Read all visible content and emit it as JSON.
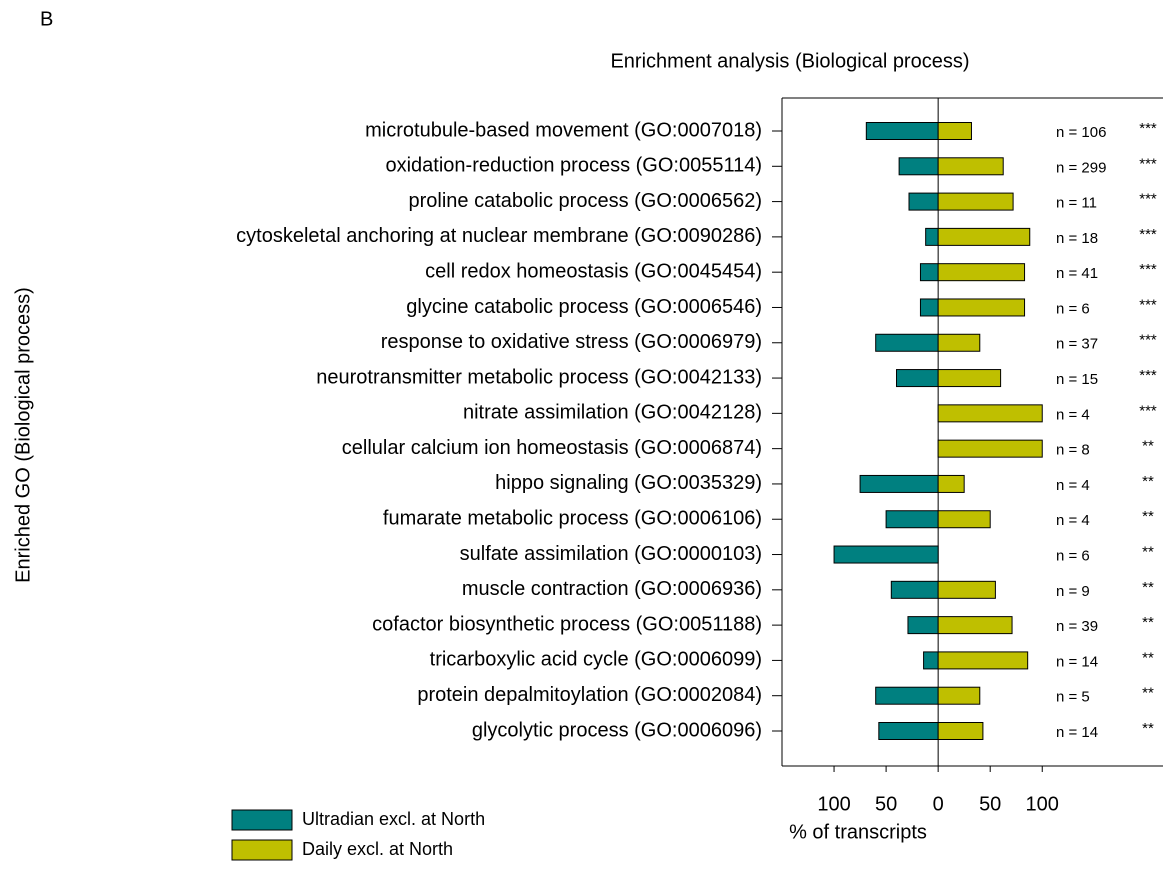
{
  "chart_data": {
    "type": "diverging-bar",
    "panel_label": "B",
    "title": "Enrichment analysis (Biological process)",
    "y_label": "Enriched GO (Biological process)",
    "x_label": "% of transcripts",
    "categories": [
      "microtubule-based movement (GO:0007018)",
      "oxidation-reduction process (GO:0055114)",
      "proline catabolic process (GO:0006562)",
      "cytoskeletal anchoring at nuclear membrane (GO:0090286)",
      "cell redox homeostasis (GO:0045454)",
      "glycine catabolic process (GO:0006546)",
      "response to oxidative stress (GO:0006979)",
      "neurotransmitter metabolic process (GO:0042133)",
      "nitrate assimilation (GO:0042128)",
      "cellular calcium ion homeostasis (GO:0006874)",
      "hippo signaling (GO:0035329)",
      "fumarate metabolic process (GO:0006106)",
      "sulfate assimilation (GO:0000103)",
      "muscle contraction (GO:0006936)",
      "cofactor biosynthetic process (GO:0051188)",
      "tricarboxylic acid cycle (GO:0006099)",
      "protein depalmitoylation (GO:0002084)",
      "glycolytic process (GO:0006096)"
    ],
    "series": [
      {
        "name": "Ultradian excl. at North",
        "color": "#008080",
        "values": [
          -69,
          -37.5,
          -28,
          -12,
          -17,
          -17,
          -60,
          -40,
          0,
          0,
          -75,
          -50,
          -100,
          -45,
          -29,
          -14,
          -60,
          -57
        ]
      },
      {
        "name": "Daily excl. at North",
        "color": "#bfbf00",
        "values": [
          32,
          62.5,
          72,
          88,
          83,
          83,
          40,
          60,
          100,
          100,
          25,
          50,
          0,
          55,
          71,
          86,
          40,
          43
        ]
      }
    ],
    "n_labels": [
      "n = 106",
      "n = 299",
      "n = 11",
      "n = 18",
      "n = 41",
      "n = 6",
      "n = 37",
      "n = 15",
      "n = 4",
      "n = 8",
      "n = 4",
      "n = 4",
      "n = 6",
      "n = 9",
      "n = 39",
      "n = 14",
      "n = 5",
      "n = 14"
    ],
    "significance": [
      "***",
      "***",
      "***",
      "***",
      "***",
      "***",
      "***",
      "***",
      "***",
      "**",
      "**",
      "**",
      "**",
      "**",
      "**",
      "**",
      "**",
      "**"
    ],
    "xlim": [
      -150,
      216
    ],
    "xticks": [
      {
        "value": -100,
        "label": "100"
      },
      {
        "value": -50,
        "label": "50"
      },
      0,
      50,
      100
    ]
  }
}
